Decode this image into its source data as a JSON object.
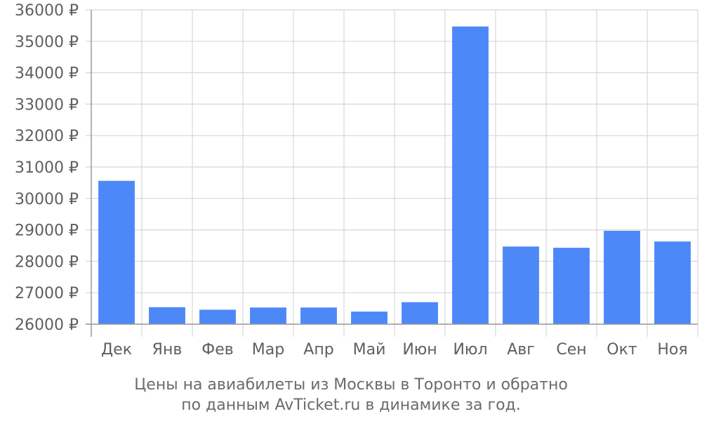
{
  "caption": {
    "line1": "Цены на авиабилеты из Москвы в Торонто и обратно",
    "line2": "по данным AvTicket.ru в динамике за год."
  },
  "colors": {
    "bar": "#4d88f8",
    "grid": "#d7d7d7",
    "axis": "#9a9a9a",
    "text": "#5f5f5f"
  },
  "chart_data": {
    "type": "bar",
    "categories": [
      "Дек",
      "Янв",
      "Фев",
      "Мар",
      "Апр",
      "Май",
      "Июн",
      "Июл",
      "Авг",
      "Сен",
      "Окт",
      "Ноя"
    ],
    "series": [
      {
        "values": [
          30560,
          26540,
          26460,
          26530,
          26530,
          26400,
          26700,
          35470,
          28470,
          28430,
          28970,
          28630
        ]
      }
    ],
    "ylim": [
      26000,
      36000
    ],
    "yticks": [
      36000,
      35000,
      34000,
      33000,
      32000,
      31000,
      30000,
      29000,
      28000,
      27000,
      26000
    ],
    "ytick_suffix": " ₽",
    "xlabel": "",
    "ylabel": "",
    "grid": true,
    "legend": false
  }
}
